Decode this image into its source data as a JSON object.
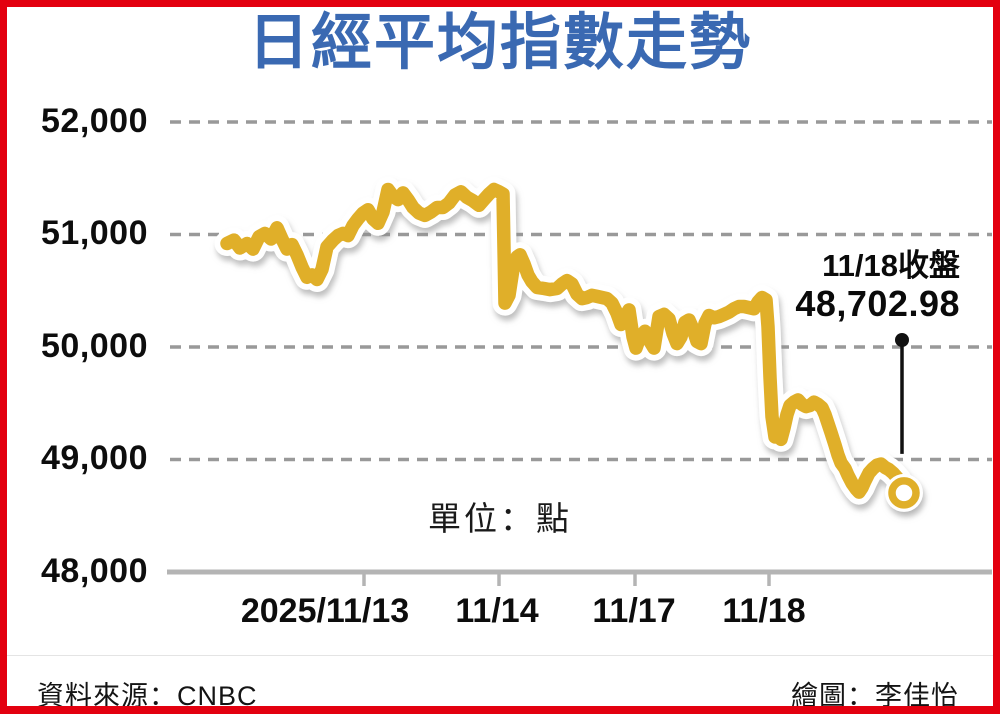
{
  "title": "日經平均指數走勢",
  "unit_label": "單位：點",
  "annotation": {
    "line1": "11/18收盤",
    "line2": "48,702.98"
  },
  "footer": {
    "source": "資料來源：CNBC",
    "credit": "繪圖：李佳怡"
  },
  "colors": {
    "border_red": "#e3000f",
    "title_blue": "#3a69b2",
    "line_gold": "#e0af29",
    "grid_gray": "#999999",
    "axis_gray": "#b4b4b4",
    "ink": "#0d0d0d"
  },
  "chart_data": {
    "type": "line",
    "title": "日經平均指數走勢",
    "xlabel": "",
    "ylabel": "點",
    "unit": "點",
    "ylim": [
      48000,
      52000
    ],
    "grid": "horizontal dashed",
    "legend_position": "none",
    "y_ticks": [
      {
        "value": 52000,
        "label": "52,000"
      },
      {
        "value": 51000,
        "label": "51,000"
      },
      {
        "value": 50000,
        "label": "50,000"
      },
      {
        "value": 49000,
        "label": "49,000"
      },
      {
        "value": 48000,
        "label": "48,000"
      }
    ],
    "x_ticks": [
      "2025/11/13",
      "11/14",
      "11/17",
      "11/18"
    ],
    "series": [
      {
        "name": "日經平均指數",
        "close_value": 48702.98,
        "close_label": "48,702.98",
        "close_date": "11/18",
        "points": [
          [
            220,
            50920
          ],
          [
            227,
            50950
          ],
          [
            233,
            50880
          ],
          [
            240,
            50920
          ],
          [
            246,
            50870
          ],
          [
            252,
            50980
          ],
          [
            258,
            51010
          ],
          [
            264,
            50960
          ],
          [
            270,
            51060
          ],
          [
            275,
            50960
          ],
          [
            280,
            50870
          ],
          [
            285,
            50910
          ],
          [
            290,
            50820
          ],
          [
            295,
            50710
          ],
          [
            300,
            50620
          ],
          [
            305,
            50640
          ],
          [
            310,
            50600
          ],
          [
            315,
            50690
          ],
          [
            320,
            50890
          ],
          [
            326,
            50950
          ],
          [
            331,
            50990
          ],
          [
            336,
            51010
          ],
          [
            341,
            50990
          ],
          [
            346,
            51080
          ],
          [
            351,
            51140
          ],
          [
            356,
            51190
          ],
          [
            361,
            51220
          ],
          [
            366,
            51140
          ],
          [
            371,
            51100
          ],
          [
            376,
            51200
          ],
          [
            381,
            51400
          ],
          [
            386,
            51340
          ],
          [
            391,
            51310
          ],
          [
            396,
            51370
          ],
          [
            401,
            51310
          ],
          [
            406,
            51240
          ],
          [
            412,
            51190
          ],
          [
            418,
            51170
          ],
          [
            424,
            51200
          ],
          [
            430,
            51240
          ],
          [
            436,
            51240
          ],
          [
            442,
            51280
          ],
          [
            448,
            51350
          ],
          [
            454,
            51380
          ],
          [
            460,
            51330
          ],
          [
            466,
            51300
          ],
          [
            472,
            51260
          ],
          [
            477,
            51310
          ],
          [
            482,
            51360
          ],
          [
            487,
            51400
          ],
          [
            492,
            51380
          ],
          [
            496,
            51360
          ],
          [
            498,
            50390
          ],
          [
            502,
            50460
          ],
          [
            506,
            50690
          ],
          [
            510,
            50800
          ],
          [
            513,
            50820
          ],
          [
            517,
            50740
          ],
          [
            521,
            50640
          ],
          [
            525,
            50580
          ],
          [
            530,
            50530
          ],
          [
            537,
            50520
          ],
          [
            543,
            50510
          ],
          [
            550,
            50520
          ],
          [
            555,
            50560
          ],
          [
            560,
            50590
          ],
          [
            565,
            50560
          ],
          [
            570,
            50470
          ],
          [
            575,
            50430
          ],
          [
            580,
            50440
          ],
          [
            585,
            50460
          ],
          [
            590,
            50450
          ],
          [
            595,
            50440
          ],
          [
            600,
            50430
          ],
          [
            605,
            50390
          ],
          [
            610,
            50300
          ],
          [
            614,
            50200
          ],
          [
            618,
            50270
          ],
          [
            622,
            50330
          ],
          [
            626,
            50090
          ],
          [
            629,
            49990
          ],
          [
            633,
            50090
          ],
          [
            638,
            50140
          ],
          [
            643,
            50050
          ],
          [
            647,
            49990
          ],
          [
            652,
            50270
          ],
          [
            657,
            50290
          ],
          [
            662,
            50250
          ],
          [
            666,
            50120
          ],
          [
            670,
            50030
          ],
          [
            674,
            50090
          ],
          [
            678,
            50220
          ],
          [
            682,
            50240
          ],
          [
            686,
            50160
          ],
          [
            690,
            50050
          ],
          [
            694,
            50030
          ],
          [
            698,
            50210
          ],
          [
            702,
            50280
          ],
          [
            707,
            50260
          ],
          [
            712,
            50270
          ],
          [
            717,
            50290
          ],
          [
            722,
            50310
          ],
          [
            727,
            50340
          ],
          [
            732,
            50360
          ],
          [
            737,
            50360
          ],
          [
            742,
            50350
          ],
          [
            747,
            50340
          ],
          [
            751,
            50400
          ],
          [
            755,
            50440
          ],
          [
            759,
            50420
          ],
          [
            761,
            50180
          ],
          [
            763,
            49730
          ],
          [
            765,
            49380
          ],
          [
            768,
            49200
          ],
          [
            771,
            49240
          ],
          [
            774,
            49180
          ],
          [
            777,
            49280
          ],
          [
            780,
            49400
          ],
          [
            783,
            49480
          ],
          [
            787,
            49510
          ],
          [
            791,
            49530
          ],
          [
            795,
            49490
          ],
          [
            799,
            49470
          ],
          [
            803,
            49480
          ],
          [
            807,
            49510
          ],
          [
            811,
            49490
          ],
          [
            815,
            49460
          ],
          [
            818,
            49400
          ],
          [
            821,
            49320
          ],
          [
            824,
            49240
          ],
          [
            828,
            49130
          ],
          [
            831,
            49040
          ],
          [
            834,
            48970
          ],
          [
            838,
            48920
          ],
          [
            841,
            48860
          ],
          [
            845,
            48790
          ],
          [
            849,
            48740
          ],
          [
            852,
            48710
          ],
          [
            855,
            48750
          ],
          [
            858,
            48810
          ],
          [
            862,
            48880
          ],
          [
            866,
            48920
          ],
          [
            870,
            48950
          ],
          [
            874,
            48960
          ],
          [
            878,
            48930
          ],
          [
            882,
            48910
          ],
          [
            886,
            48880
          ],
          [
            889,
            48850
          ],
          [
            892,
            48820
          ],
          [
            895,
            48760
          ],
          [
            897,
            48702.98
          ]
        ]
      }
    ]
  }
}
